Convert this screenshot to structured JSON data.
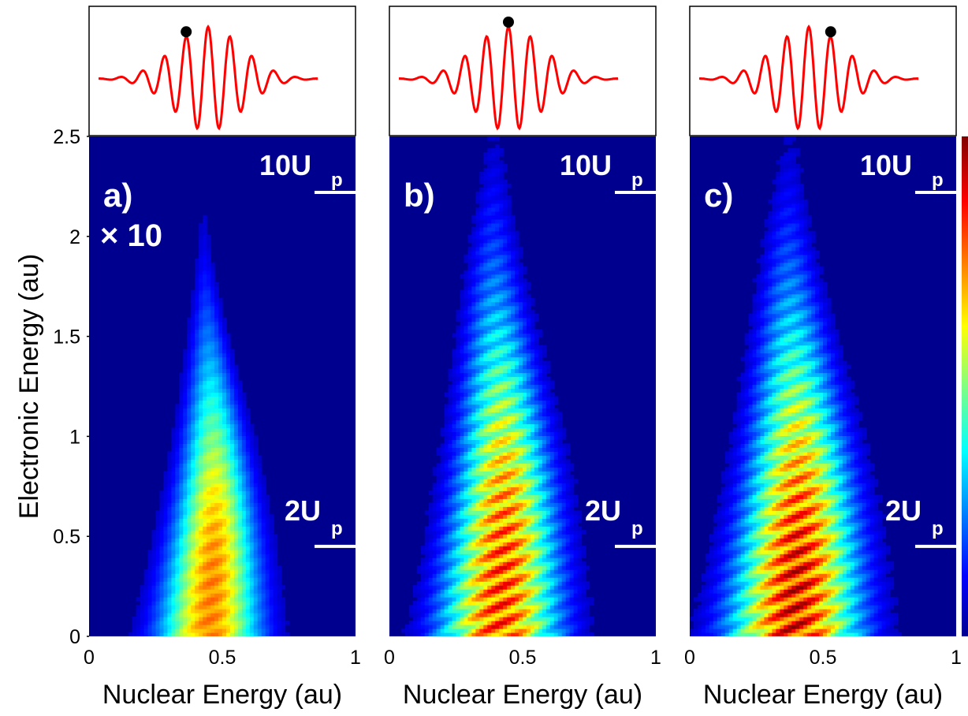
{
  "chart_data": {
    "type": "heatmap",
    "shared_axes": {
      "ylabel": "Electronic Energy (au)",
      "ylim": [
        0,
        2.5
      ],
      "yticks": [
        "0",
        "0.5",
        "1",
        "1.5",
        "2",
        "2.5"
      ],
      "xlim": [
        0,
        1
      ],
      "xticks": [
        "0",
        "0.5",
        "1"
      ],
      "xlabel": "Nuclear Energy (au)"
    },
    "colormap": "jet",
    "colors": {
      "background": "#00008f",
      "accent_line": "#ff0000",
      "marker": "#000000"
    },
    "panels": [
      {
        "label": "a)",
        "multiplier": "× 10",
        "marker_phase": 0.39,
        "annotations": [
          {
            "main": "10U",
            "sub": "p",
            "y": 2.22
          },
          {
            "main": "2U",
            "sub": "p",
            "y": 0.45
          }
        ],
        "blob": {
          "center_x": 0.45,
          "peak_y": 0.25,
          "top_y": 2.1,
          "base_half_width": 0.28,
          "top_half_width": 0.03,
          "fringes": "weak",
          "max_intensity": 0.78
        }
      },
      {
        "label": "b)",
        "multiplier": "",
        "marker_phase": 0.5,
        "annotations": [
          {
            "main": "10U",
            "sub": "p",
            "y": 2.22
          },
          {
            "main": "2U",
            "sub": "p",
            "y": 0.45
          }
        ],
        "blob": {
          "center_x": 0.41,
          "peak_y": 0.25,
          "top_y": 2.5,
          "base_half_width": 0.33,
          "top_half_width": 0.08,
          "fringes": "strong",
          "max_intensity": 0.92
        }
      },
      {
        "label": "c)",
        "multiplier": "",
        "marker_phase": 0.63,
        "annotations": [
          {
            "main": "10U",
            "sub": "p",
            "y": 2.22
          },
          {
            "main": "2U",
            "sub": "p",
            "y": 0.45
          }
        ],
        "blob": {
          "center_x": 0.39,
          "peak_y": 0.2,
          "top_y": 2.5,
          "base_half_width": 0.36,
          "top_half_width": 0.08,
          "fringes": "strong",
          "max_intensity": 1.0
        }
      }
    ]
  }
}
